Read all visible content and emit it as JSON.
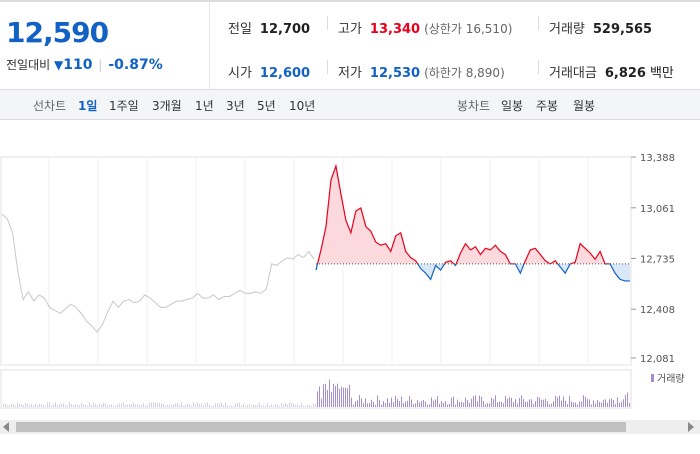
{
  "quote": {
    "current_price": "12,590",
    "change_label": "전일대비",
    "change_icon": "down-triangle-icon",
    "change_amount": "110",
    "change_percent": "-0.87%",
    "prev_close": {
      "label": "전일",
      "value": "12,700"
    },
    "high": {
      "label": "고가",
      "value": "13,340",
      "sub": "(상한가 16,510)"
    },
    "volume": {
      "label": "거래량",
      "value": "529,565"
    },
    "open": {
      "label": "시가",
      "value": "12,600"
    },
    "low": {
      "label": "저가",
      "value": "12,530",
      "sub": "(하한가 8,890)"
    },
    "trade_amount": {
      "label": "거래대금",
      "value": "6,826",
      "unit": "백만"
    },
    "colors": {
      "up": "#e8001c",
      "down": "#1261c4"
    }
  },
  "tabs": {
    "line_label": "선차트",
    "line_periods": [
      "1일",
      "1주일",
      "3개월",
      "1년",
      "3년",
      "5년",
      "10년"
    ],
    "line_active": "1일",
    "candle_label": "봉차트",
    "candle_periods": [
      "일봉",
      "주봉",
      "월봉"
    ]
  },
  "chart_data": {
    "type": "line",
    "y_ticks": [
      "13,388",
      "13,061",
      "12,735",
      "12,408",
      "12,081"
    ],
    "ylim": [
      12081,
      13388
    ],
    "baseline": 12700,
    "volume_legend": "거래량",
    "prev_day_series": [
      13020,
      12990,
      12900,
      12650,
      12470,
      12520,
      12460,
      12500,
      12480,
      12420,
      12400,
      12380,
      12410,
      12440,
      12420,
      12380,
      12330,
      12300,
      12260,
      12310,
      12390,
      12460,
      12420,
      12460,
      12470,
      12450,
      12460,
      12500,
      12480,
      12450,
      12420,
      12420,
      12440,
      12460,
      12460,
      12470,
      12480,
      12510,
      12480,
      12480,
      12500,
      12470,
      12490,
      12490,
      12510,
      12530,
      12510,
      12510,
      12520,
      12510,
      12540,
      12700,
      12690,
      12720,
      12740,
      12730,
      12760,
      12740,
      12780,
      12730
    ],
    "today_series": [
      12660,
      12790,
      12940,
      13240,
      13330,
      13150,
      12980,
      12900,
      13040,
      13060,
      12940,
      12910,
      12840,
      12820,
      12830,
      12780,
      12880,
      12900,
      12780,
      12740,
      12720,
      12670,
      12640,
      12600,
      12690,
      12660,
      12710,
      12720,
      12690,
      12770,
      12830,
      12790,
      12810,
      12760,
      12800,
      12790,
      12820,
      12780,
      12760,
      12700,
      12700,
      12640,
      12720,
      12790,
      12800,
      12760,
      12720,
      12700,
      12720,
      12680,
      12640,
      12700,
      12710,
      12830,
      12800,
      12770,
      12730,
      12780,
      12700,
      12700,
      12640,
      12600,
      12590,
      12590
    ]
  }
}
